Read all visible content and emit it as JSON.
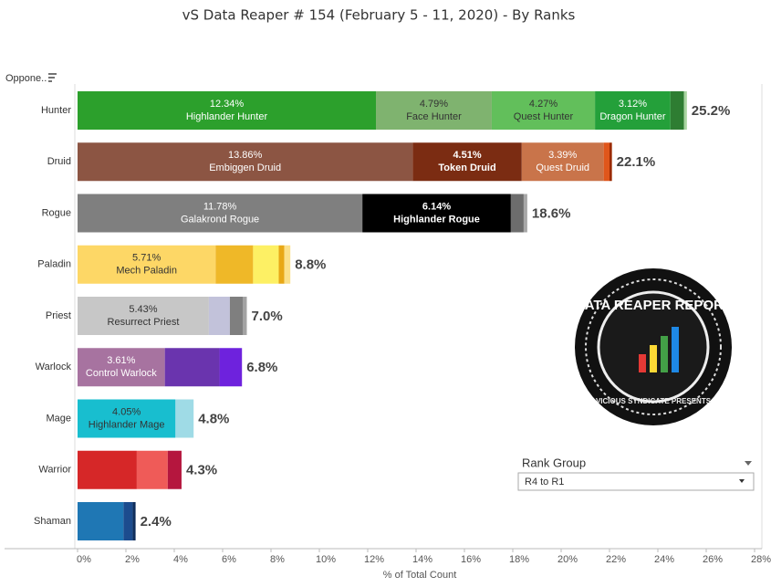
{
  "chart_data": {
    "type": "stacked_bar_h",
    "title": "vS Data Reaper #  154 (February 5 - 11, 2020) - By Ranks",
    "row_header": "Oppone..",
    "x_label": "% of Total Count",
    "categories": [
      "Hunter",
      "Druid",
      "Rogue",
      "Paladin",
      "Priest",
      "Warlock",
      "Mage",
      "Warrior",
      "Shaman"
    ],
    "rows": [
      {
        "segments": [
          {
            "value": 12.34,
            "value_label": "12.34%",
            "name": "Highlander Hunter",
            "color": "#2ca02c"
          },
          {
            "value": 4.79,
            "value_label": "4.79%",
            "name": "Face Hunter",
            "color": "#7fb36f"
          },
          {
            "value": 4.27,
            "value_label": "4.27%",
            "name": "Quest Hunter",
            "color": "#62bf5b"
          },
          {
            "value": 3.12,
            "value_label": "3.12%",
            "name": "Dragon Hunter",
            "color": "#24a03a"
          },
          {
            "value": 0.56,
            "color": "#2e7d32"
          },
          {
            "value": 0.12,
            "color": "#a8d5a0"
          }
        ]
      },
      {
        "segments": [
          {
            "value": 13.86,
            "value_label": "13.86%",
            "name": "Embiggen Druid",
            "color": "#8c5543"
          },
          {
            "value": 4.51,
            "value_label": "4.51%",
            "name": "Token Druid",
            "color": "#7b2c12"
          },
          {
            "value": 3.39,
            "value_label": "3.39%",
            "name": "Quest Druid",
            "color": "#c9744a"
          },
          {
            "value": 0.24,
            "color": "#e0561b"
          },
          {
            "value": 0.1,
            "color": "#9b2a00"
          }
        ]
      },
      {
        "segments": [
          {
            "value": 11.78,
            "value_label": "11.78%",
            "name": "Galakrond Rogue",
            "color": "#7f7f7f"
          },
          {
            "value": 6.14,
            "value_label": "6.14%",
            "name": "Highlander Rogue",
            "color": "#000000"
          },
          {
            "value": 0.53,
            "color": "#6d6d6d"
          },
          {
            "value": 0.15,
            "color": "#a8a8a8"
          }
        ]
      },
      {
        "segments": [
          {
            "value": 5.71,
            "value_label": "5.71%",
            "name": "Mech Paladin",
            "color": "#fdd766"
          },
          {
            "value": 1.55,
            "color": "#efb828"
          },
          {
            "value": 1.06,
            "color": "#fdf064"
          },
          {
            "value": 0.23,
            "color": "#e8a817"
          },
          {
            "value": 0.25,
            "color": "#fbe08a"
          }
        ]
      },
      {
        "segments": [
          {
            "value": 5.43,
            "value_label": "5.43%",
            "name": "Resurrect Priest",
            "color": "#c7c7c7"
          },
          {
            "value": 0.87,
            "color": "#c2c2da"
          },
          {
            "value": 0.53,
            "color": "#7f7f7f"
          },
          {
            "value": 0.17,
            "color": "#a3a3a3"
          }
        ]
      },
      {
        "segments": [
          {
            "value": 3.61,
            "value_label": "3.61%",
            "name": "Control Warlock",
            "color": "#a773a0"
          },
          {
            "value": 2.26,
            "color": "#6a34ae"
          },
          {
            "value": 0.93,
            "color": "#6e22dd"
          }
        ]
      },
      {
        "segments": [
          {
            "value": 4.05,
            "value_label": "4.05%",
            "name": "Highlander Mage",
            "color": "#18becf"
          },
          {
            "value": 0.75,
            "color": "#9fdbe6"
          }
        ]
      },
      {
        "segments": [
          {
            "value": 2.45,
            "color": "#d62728"
          },
          {
            "value": 1.28,
            "color": "#ef5b58"
          },
          {
            "value": 0.57,
            "color": "#b5163e"
          }
        ]
      },
      {
        "segments": [
          {
            "value": 1.9,
            "color": "#1f77b4"
          },
          {
            "value": 0.38,
            "color": "#1c4c8e"
          },
          {
            "value": 0.12,
            "color": "#0f2e5c"
          }
        ]
      }
    ],
    "totals": [
      25.2,
      22.1,
      18.6,
      8.8,
      7.0,
      6.8,
      4.8,
      4.3,
      2.4
    ],
    "total_labels": [
      "25.2%",
      "22.1%",
      "18.6%",
      "8.8%",
      "7.0%",
      "6.8%",
      "4.8%",
      "4.3%",
      "2.4%"
    ],
    "xlim": [
      0,
      28
    ],
    "xticks": [
      {
        "value": 0,
        "label": "0%"
      },
      {
        "value": 2,
        "label": "2%"
      },
      {
        "value": 4,
        "label": "4%"
      },
      {
        "value": 6,
        "label": "6%"
      },
      {
        "value": 8,
        "label": "8%"
      },
      {
        "value": 10,
        "label": "10%"
      },
      {
        "value": 12,
        "label": "12%"
      },
      {
        "value": 14,
        "label": "14%"
      },
      {
        "value": 16,
        "label": "16%"
      },
      {
        "value": 18,
        "label": "18%"
      },
      {
        "value": 20,
        "label": "20%"
      },
      {
        "value": 22,
        "label": "22%"
      },
      {
        "value": 24,
        "label": "24%"
      },
      {
        "value": 26,
        "label": "26%"
      },
      {
        "value": 28,
        "label": "28%"
      }
    ]
  },
  "filter": {
    "label": "Rank Group",
    "value": "R4 to R1"
  },
  "logo": {
    "title": "DATA REAPER REPORT",
    "subtitle": "VICIOUS SYNDICATE PRESENTS"
  }
}
